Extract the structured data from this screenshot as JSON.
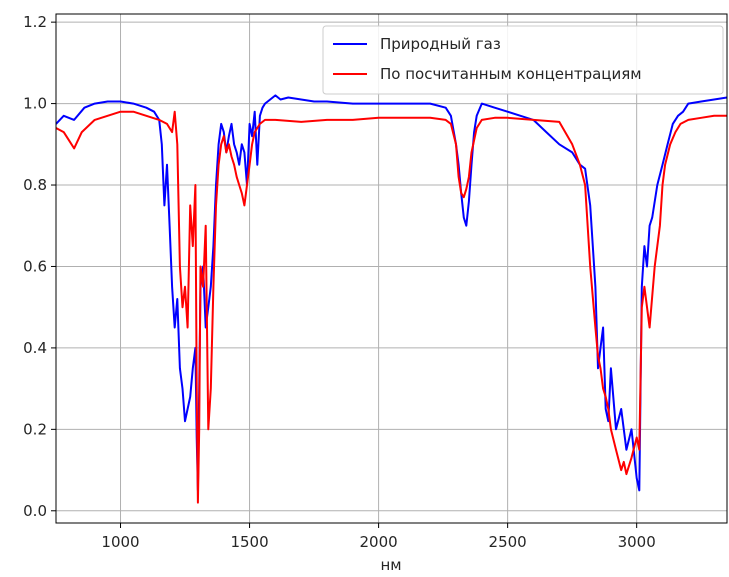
{
  "chart_data": {
    "type": "line",
    "title": "",
    "xlabel": "нм",
    "ylabel": "",
    "xlim": [
      750,
      3350
    ],
    "ylim": [
      -0.03,
      1.22
    ],
    "grid": true,
    "legend_position": "top-right",
    "xticks": [
      {
        "value": 1000,
        "label": "1000"
      },
      {
        "value": 1500,
        "label": "1500"
      },
      {
        "value": 2000,
        "label": "2000"
      },
      {
        "value": 2500,
        "label": "2500"
      },
      {
        "value": 3000,
        "label": "3000"
      }
    ],
    "yticks": [
      {
        "value": 0.0,
        "label": "0.0"
      },
      {
        "value": 0.2,
        "label": "0.2"
      },
      {
        "value": 0.4,
        "label": "0.4"
      },
      {
        "value": 0.6,
        "label": "0.6"
      },
      {
        "value": 0.8,
        "label": "0.8"
      },
      {
        "value": 1.0,
        "label": "1.0"
      },
      {
        "value": 1.2,
        "label": "1.2"
      }
    ],
    "series": [
      {
        "name": "Природный газ",
        "color": "#0000ff",
        "x": [
          750,
          780,
          820,
          860,
          900,
          950,
          1000,
          1050,
          1100,
          1130,
          1150,
          1160,
          1170,
          1180,
          1190,
          1200,
          1210,
          1220,
          1230,
          1240,
          1250,
          1260,
          1270,
          1280,
          1290,
          1295,
          1300,
          1305,
          1310,
          1320,
          1330,
          1340,
          1350,
          1360,
          1370,
          1380,
          1390,
          1400,
          1410,
          1420,
          1430,
          1440,
          1450,
          1460,
          1470,
          1480,
          1490,
          1500,
          1510,
          1520,
          1530,
          1540,
          1550,
          1560,
          1580,
          1600,
          1620,
          1650,
          1700,
          1750,
          1800,
          1900,
          2000,
          2100,
          2200,
          2260,
          2280,
          2300,
          2310,
          2320,
          2330,
          2340,
          2350,
          2360,
          2370,
          2380,
          2400,
          2450,
          2500,
          2550,
          2600,
          2650,
          2700,
          2750,
          2780,
          2800,
          2820,
          2840,
          2850,
          2860,
          2870,
          2880,
          2890,
          2900,
          2920,
          2940,
          2960,
          2980,
          3000,
          3010,
          3020,
          3030,
          3040,
          3050,
          3060,
          3080,
          3100,
          3120,
          3140,
          3160,
          3180,
          3200,
          3250,
          3300,
          3350
        ],
        "y": [
          0.95,
          0.97,
          0.96,
          0.99,
          1.0,
          1.005,
          1.005,
          1.0,
          0.99,
          0.98,
          0.96,
          0.9,
          0.75,
          0.85,
          0.7,
          0.55,
          0.45,
          0.52,
          0.35,
          0.3,
          0.22,
          0.25,
          0.28,
          0.35,
          0.4,
          0.18,
          0.05,
          0.3,
          0.55,
          0.6,
          0.45,
          0.5,
          0.55,
          0.65,
          0.8,
          0.9,
          0.95,
          0.93,
          0.88,
          0.92,
          0.95,
          0.9,
          0.88,
          0.85,
          0.9,
          0.88,
          0.8,
          0.95,
          0.92,
          0.98,
          0.85,
          0.97,
          0.99,
          1.0,
          1.01,
          1.02,
          1.01,
          1.015,
          1.01,
          1.005,
          1.005,
          1.0,
          1.0,
          1.0,
          1.0,
          0.99,
          0.97,
          0.9,
          0.85,
          0.78,
          0.72,
          0.7,
          0.76,
          0.85,
          0.93,
          0.97,
          1.0,
          0.99,
          0.98,
          0.97,
          0.96,
          0.93,
          0.9,
          0.88,
          0.85,
          0.84,
          0.75,
          0.55,
          0.35,
          0.4,
          0.45,
          0.25,
          0.22,
          0.35,
          0.2,
          0.25,
          0.15,
          0.2,
          0.08,
          0.05,
          0.55,
          0.65,
          0.6,
          0.7,
          0.72,
          0.8,
          0.85,
          0.9,
          0.95,
          0.97,
          0.98,
          1.0,
          1.005,
          1.01,
          1.015
        ]
      },
      {
        "name": "По посчитанным концентрациям",
        "color": "#ff0000",
        "x": [
          750,
          780,
          800,
          820,
          850,
          900,
          950,
          1000,
          1050,
          1100,
          1150,
          1180,
          1200,
          1210,
          1220,
          1230,
          1240,
          1250,
          1260,
          1270,
          1280,
          1290,
          1295,
          1300,
          1305,
          1310,
          1320,
          1330,
          1340,
          1350,
          1360,
          1370,
          1380,
          1390,
          1400,
          1410,
          1420,
          1430,
          1440,
          1450,
          1460,
          1470,
          1480,
          1490,
          1500,
          1510,
          1520,
          1530,
          1540,
          1560,
          1600,
          1700,
          1800,
          1900,
          2000,
          2100,
          2200,
          2260,
          2280,
          2300,
          2310,
          2320,
          2330,
          2340,
          2350,
          2360,
          2380,
          2400,
          2450,
          2500,
          2600,
          2700,
          2750,
          2780,
          2800,
          2820,
          2840,
          2850,
          2860,
          2870,
          2880,
          2890,
          2900,
          2920,
          2940,
          2950,
          2960,
          2980,
          3000,
          3010,
          3020,
          3030,
          3050,
          3070,
          3090,
          3100,
          3110,
          3130,
          3150,
          3170,
          3200,
          3250,
          3300,
          3350
        ],
        "y": [
          0.94,
          0.93,
          0.91,
          0.89,
          0.93,
          0.96,
          0.97,
          0.98,
          0.98,
          0.97,
          0.96,
          0.95,
          0.93,
          0.98,
          0.9,
          0.6,
          0.5,
          0.55,
          0.45,
          0.75,
          0.65,
          0.8,
          0.3,
          0.02,
          0.2,
          0.6,
          0.55,
          0.7,
          0.2,
          0.3,
          0.55,
          0.75,
          0.85,
          0.9,
          0.92,
          0.88,
          0.9,
          0.87,
          0.85,
          0.82,
          0.8,
          0.78,
          0.75,
          0.8,
          0.85,
          0.9,
          0.93,
          0.94,
          0.95,
          0.96,
          0.96,
          0.955,
          0.96,
          0.96,
          0.965,
          0.965,
          0.965,
          0.96,
          0.95,
          0.9,
          0.82,
          0.78,
          0.77,
          0.79,
          0.82,
          0.88,
          0.94,
          0.96,
          0.965,
          0.965,
          0.96,
          0.955,
          0.9,
          0.85,
          0.8,
          0.6,
          0.45,
          0.38,
          0.35,
          0.3,
          0.28,
          0.25,
          0.2,
          0.15,
          0.1,
          0.12,
          0.09,
          0.13,
          0.18,
          0.15,
          0.5,
          0.55,
          0.45,
          0.6,
          0.7,
          0.8,
          0.85,
          0.9,
          0.93,
          0.95,
          0.96,
          0.965,
          0.97,
          0.97
        ]
      }
    ]
  }
}
